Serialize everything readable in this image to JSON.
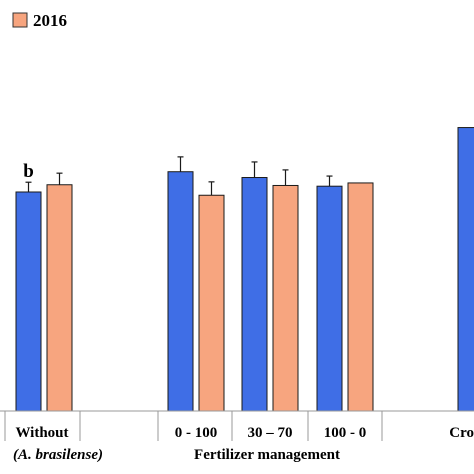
{
  "chart_data": {
    "type": "bar",
    "title": "",
    "xlabel": "",
    "ylabel": "",
    "ylim": [
      0,
      100
    ],
    "grid": false,
    "legend_position": "top-left",
    "colors": {
      "series_a": "#3f6ee6",
      "series_b": "#f7a57f"
    },
    "categories": [
      {
        "label": "Without",
        "sublabel": "(A. brasilense)"
      },
      {
        "label": "0 - 100",
        "sublabel": ""
      },
      {
        "label": "30 – 70",
        "sublabel": ""
      },
      {
        "label": "100 - 0",
        "sublabel": ""
      },
      {
        "label": "Cro",
        "sublabel": ""
      }
    ],
    "group_label": "Fertilizer management",
    "series": [
      {
        "name": "",
        "color_key": "series_a",
        "values": [
          60.5,
          66.1,
          64.5,
          62.1,
          78.3
        ],
        "errors": [
          2.7,
          4.1,
          4.3,
          2.8,
          0
        ]
      },
      {
        "name": "2016",
        "color_key": "series_b",
        "values": [
          62.5,
          59.6,
          62.3,
          63.0,
          null
        ],
        "errors": [
          3.2,
          3.7,
          4.3,
          0,
          0
        ]
      }
    ],
    "annotations": [
      {
        "series_index": 0,
        "category_index": 0,
        "text": "b"
      }
    ]
  }
}
